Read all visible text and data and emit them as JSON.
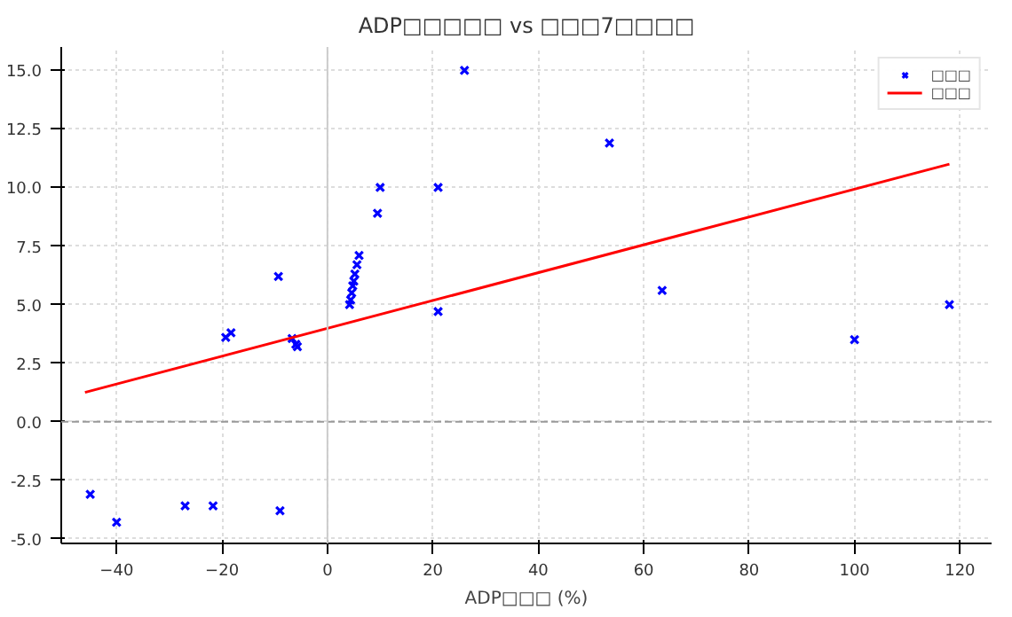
{
  "chart_data": {
    "type": "scatter",
    "title": "ADP□□□□□ vs □□□7□□□□",
    "xlabel": "ADP□□□ (%)",
    "series": [
      {
        "name": "□□□",
        "color": "#0000ff",
        "marker": "cross",
        "x": [
          -45,
          -40,
          -27,
          -21.7,
          -9,
          -9.3,
          -19.3,
          -18.3,
          -6.7,
          -6,
          -5.7,
          4.2,
          4.4,
          4.6,
          4.8,
          5.0,
          5.2,
          5.6,
          6.0,
          9.5,
          10,
          21,
          21,
          26,
          53.5,
          63.5,
          100,
          118
        ],
        "values": [
          -3.1,
          -4.3,
          -3.6,
          -3.6,
          -3.8,
          6.2,
          3.6,
          3.8,
          3.55,
          3.3,
          3.2,
          5.0,
          5.2,
          5.5,
          5.8,
          6.0,
          6.3,
          6.7,
          7.1,
          8.9,
          10,
          10,
          4.7,
          15,
          11.9,
          5.6,
          3.5,
          5.0
        ]
      },
      {
        "name": "□□□",
        "type": "line",
        "color": "#ff0000",
        "x": [
          -46,
          118
        ],
        "values": [
          1.25,
          11.0
        ]
      }
    ],
    "xlim": [
      -50.5,
      126
    ],
    "ylim": [
      -5.2,
      16
    ],
    "xticks": [
      -40,
      -20,
      0,
      20,
      40,
      60,
      80,
      100,
      120
    ],
    "yticks": [
      {
        "value": -5,
        "label": "-5.0"
      },
      {
        "value": -2.5,
        "label": "-2.5"
      },
      {
        "value": 0,
        "label": "0.0"
      },
      {
        "value": 2.5,
        "label": "2.5"
      },
      {
        "value": 5,
        "label": "5.0"
      },
      {
        "value": 7.5,
        "label": "7.5"
      },
      {
        "value": 10,
        "label": "10.0"
      },
      {
        "value": 12.5,
        "label": "12.5"
      },
      {
        "value": 15,
        "label": "15.0"
      }
    ],
    "ref_lines": [
      {
        "axis": "y",
        "value": 0,
        "color": "#999999",
        "line_style": "dashed"
      },
      {
        "axis": "x",
        "value": 0,
        "color": "#cccccc",
        "line_style": "solid"
      }
    ],
    "grid": true,
    "legend": "top right"
  }
}
